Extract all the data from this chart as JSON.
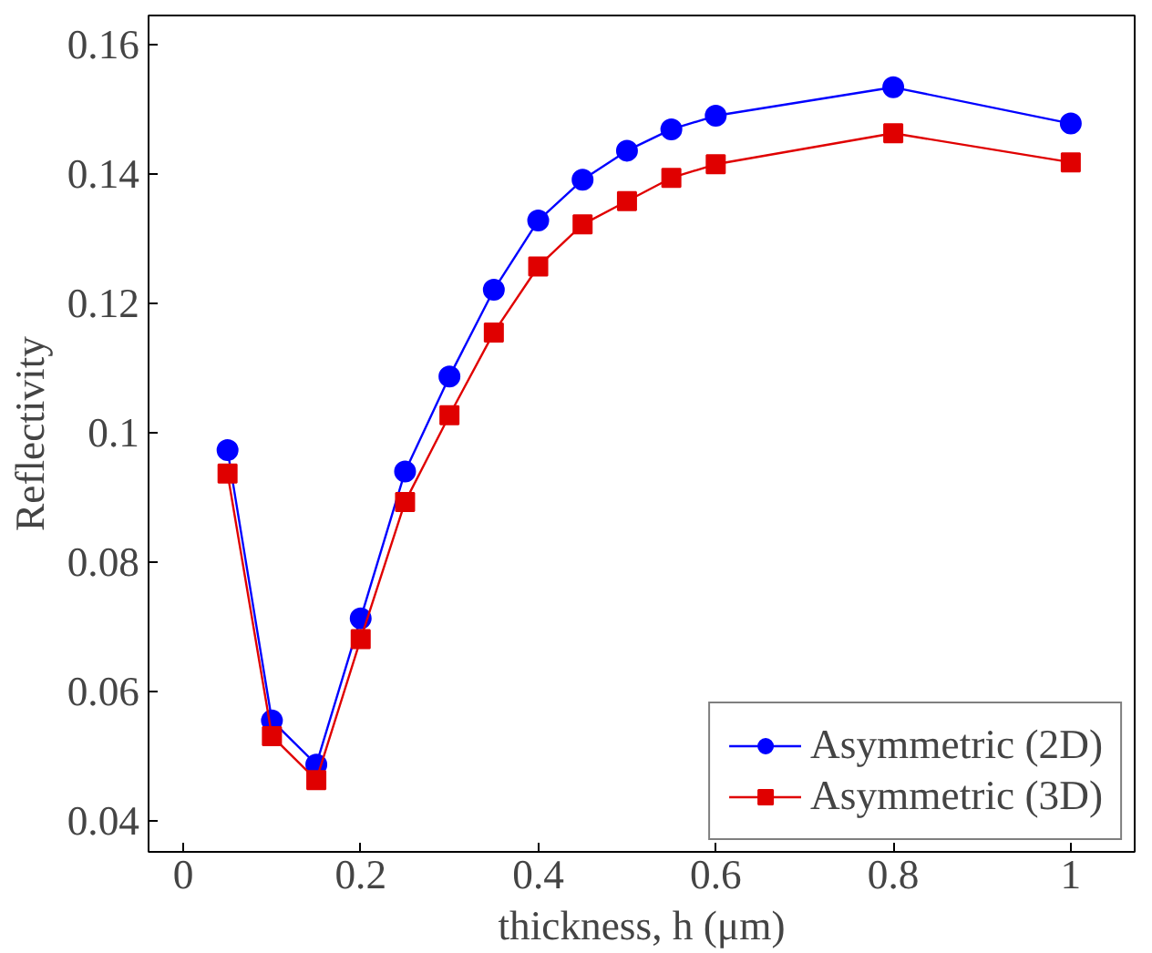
{
  "chart_data": {
    "type": "line",
    "xlabel": "thickness, h (μm)",
    "ylabel": "Reflectivity",
    "x": [
      0.05,
      0.1,
      0.15,
      0.2,
      0.25,
      0.3,
      0.35,
      0.4,
      0.45,
      0.5,
      0.55,
      0.6,
      0.8,
      1.0
    ],
    "series": [
      {
        "name": "Asymmetric (2D)",
        "color": "#0000ff",
        "marker": "circle",
        "values": [
          0.0973,
          0.0555,
          0.0487,
          0.0713,
          0.094,
          0.1087,
          0.1221,
          0.1328,
          0.1391,
          0.1436,
          0.1469,
          0.149,
          0.1534,
          0.1478
        ]
      },
      {
        "name": "Asymmetric (3D)",
        "color": "#e00000",
        "marker": "square",
        "values": [
          0.0937,
          0.0531,
          0.0463,
          0.0681,
          0.0893,
          0.1027,
          0.1155,
          0.1257,
          0.1322,
          0.1358,
          0.1394,
          0.1415,
          0.1463,
          0.1418
        ]
      }
    ],
    "xlim": [
      -0.039,
      1.072
    ],
    "ylim": [
      0.0352,
      0.1645
    ],
    "xticks": [
      0,
      0.2,
      0.4,
      0.6,
      0.8,
      1
    ],
    "yticks": [
      0.04,
      0.06,
      0.08,
      0.1,
      0.12,
      0.14,
      0.16
    ],
    "grid": false,
    "legend": "bottom right",
    "line_style": "solid"
  }
}
